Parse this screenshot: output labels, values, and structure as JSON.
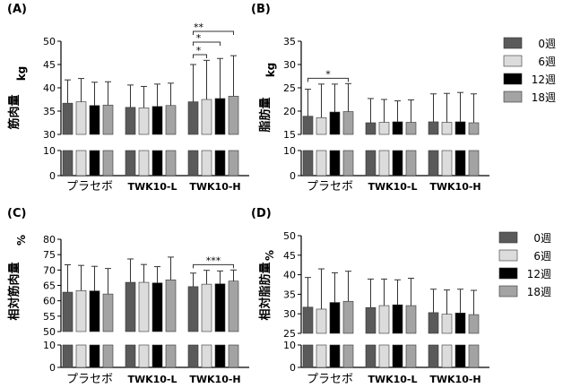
{
  "colors": {
    "week0": "#5a5a5a",
    "week6": "#dcdcdc",
    "week12": "#000000",
    "week18": "#a3a3a3",
    "axis": "#000000"
  },
  "legend": [
    "0週",
    "6週",
    "12週",
    "18週"
  ],
  "chart_data": [
    {
      "panel": "(A)",
      "type": "bar",
      "ylabel": "筋肉量",
      "unit": "kg",
      "categories": [
        "プラセボ",
        "TWK10-L",
        "TWK10-H"
      ],
      "series": [
        {
          "name": "0週",
          "values": [
            36.7,
            35.8,
            37.0
          ],
          "errors": [
            5.0,
            4.8,
            8.0
          ]
        },
        {
          "name": "6週",
          "values": [
            37.0,
            35.7,
            37.5
          ],
          "errors": [
            5.0,
            4.6,
            8.4
          ]
        },
        {
          "name": "12週",
          "values": [
            36.2,
            36.0,
            37.7
          ],
          "errors": [
            5.0,
            4.8,
            8.6
          ]
        },
        {
          "name": "18週",
          "values": [
            36.3,
            36.2,
            38.2
          ],
          "errors": [
            5.0,
            4.8,
            8.7
          ]
        }
      ],
      "upper_axis": {
        "ylim": [
          30,
          50
        ],
        "ticks": [
          "30",
          "35",
          "40",
          "45",
          "50"
        ]
      },
      "lower_axis": {
        "ylim": [
          0,
          10
        ],
        "ticks": [
          "0",
          "10"
        ]
      },
      "significance": [
        {
          "group": 2,
          "from": 0,
          "to": 1,
          "label": "*"
        },
        {
          "group": 2,
          "from": 0,
          "to": 2,
          "label": "*"
        },
        {
          "group": 2,
          "from": 0,
          "to": 3,
          "label": "**"
        }
      ]
    },
    {
      "panel": "(B)",
      "type": "bar",
      "ylabel": "脂肪量",
      "unit": "kg",
      "categories": [
        "プラセボ",
        "TWK10-L",
        "TWK10-H"
      ],
      "series": [
        {
          "name": "0週",
          "values": [
            18.9,
            17.5,
            17.7
          ],
          "errors": [
            5.8,
            5.2,
            6.0
          ]
        },
        {
          "name": "6週",
          "values": [
            18.6,
            17.6,
            17.6
          ],
          "errors": [
            7.2,
            4.9,
            6.2
          ]
        },
        {
          "name": "12週",
          "values": [
            19.8,
            17.7,
            17.7
          ],
          "errors": [
            6.0,
            4.5,
            6.3
          ]
        },
        {
          "name": "18週",
          "values": [
            19.9,
            17.6,
            17.5
          ],
          "errors": [
            6.0,
            4.8,
            6.2
          ]
        }
      ],
      "upper_axis": {
        "ylim": [
          15,
          35
        ],
        "ticks": [
          "15",
          "20",
          "25",
          "30",
          "35"
        ]
      },
      "lower_axis": {
        "ylim": [
          0,
          10
        ],
        "ticks": [
          "0",
          "10"
        ]
      },
      "significance": [
        {
          "group": 0,
          "from": 0,
          "to": 3,
          "label": "*"
        }
      ]
    },
    {
      "panel": "(C)",
      "type": "bar",
      "ylabel": "相対筋肉量",
      "unit": "%",
      "categories": [
        "プラセボ",
        "TWK10-L",
        "TWK10-H"
      ],
      "series": [
        {
          "name": "0週",
          "values": [
            62.8,
            66.0,
            64.6
          ],
          "errors": [
            8.9,
            7.6,
            4.4
          ]
        },
        {
          "name": "6週",
          "values": [
            63.3,
            66.0,
            65.4
          ],
          "errors": [
            8.2,
            5.8,
            4.5
          ]
        },
        {
          "name": "12週",
          "values": [
            63.2,
            65.8,
            65.5
          ],
          "errors": [
            8.0,
            5.3,
            4.2
          ]
        },
        {
          "name": "18週",
          "values": [
            62.2,
            66.8,
            66.4
          ],
          "errors": [
            8.3,
            7.4,
            3.6
          ]
        }
      ],
      "upper_axis": {
        "ylim": [
          50,
          80
        ],
        "ticks": [
          "50",
          "55",
          "60",
          "65",
          "70",
          "75",
          "80"
        ]
      },
      "lower_axis": {
        "ylim": [
          0,
          10
        ],
        "ticks": [
          "0",
          "10"
        ]
      },
      "significance": [
        {
          "group": 2,
          "from": 0,
          "to": 3,
          "label": "***"
        }
      ]
    },
    {
      "panel": "(D)",
      "type": "bar",
      "ylabel": "相対脂肪量",
      "unit": "%",
      "categories": [
        "プラセボ",
        "TWK10-L",
        "TWK10-H"
      ],
      "series": [
        {
          "name": "0週",
          "values": [
            31.7,
            31.6,
            30.3
          ],
          "errors": [
            7.6,
            7.3,
            6.0
          ]
        },
        {
          "name": "6週",
          "values": [
            31.2,
            32.1,
            29.9
          ],
          "errors": [
            10.3,
            6.8,
            6.2
          ]
        },
        {
          "name": "12週",
          "values": [
            32.9,
            32.3,
            30.2
          ],
          "errors": [
            7.6,
            6.4,
            6.1
          ]
        },
        {
          "name": "18週",
          "values": [
            33.2,
            32.1,
            29.8
          ],
          "errors": [
            7.7,
            7.0,
            6.2
          ]
        }
      ],
      "upper_axis": {
        "ylim": [
          25,
          50
        ],
        "ticks": [
          "25",
          "30",
          "35",
          "40",
          "45",
          "50"
        ]
      },
      "lower_axis": {
        "ylim": [
          0,
          10
        ],
        "ticks": [
          "0",
          "10"
        ]
      },
      "significance": []
    }
  ]
}
